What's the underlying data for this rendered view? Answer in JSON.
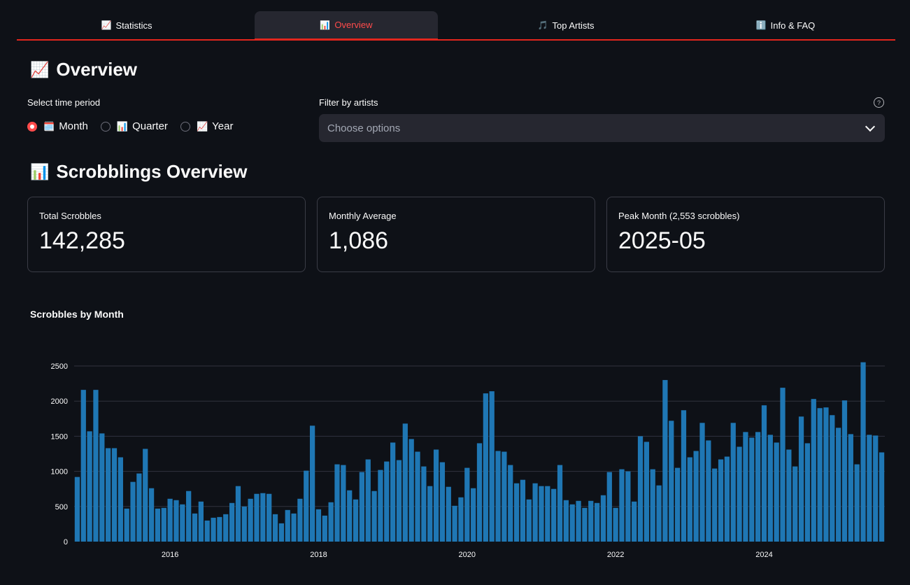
{
  "tabs": [
    {
      "label": "Statistics",
      "icon": "📈"
    },
    {
      "label": "Overview",
      "icon": "📊",
      "active": true
    },
    {
      "label": "Top Artists",
      "icon": "🎵"
    },
    {
      "label": "Info & FAQ",
      "icon": "ℹ️"
    }
  ],
  "overview": {
    "title": "Overview",
    "title_icon": "📈",
    "time_period_label": "Select time period",
    "options": [
      {
        "label": "Month",
        "icon": "🗓️",
        "selected": true
      },
      {
        "label": "Quarter",
        "icon": "📊",
        "selected": false
      },
      {
        "label": "Year",
        "icon": "📈",
        "selected": false
      }
    ],
    "filter_label": "Filter by artists",
    "filter_placeholder": "Choose options",
    "help_glyph": "?"
  },
  "scrobblings": {
    "title": "Scrobblings Overview",
    "title_icon": "📊",
    "metrics": [
      {
        "label": "Total Scrobbles",
        "value": "142,285"
      },
      {
        "label": "Monthly Average",
        "value": "1,086"
      },
      {
        "label": "Peak Month (2,553 scrobbles)",
        "value": "2025-05"
      }
    ]
  },
  "colors": {
    "accent": "#ff4b4b",
    "bar": "#1f77b4",
    "background": "#0e1117"
  },
  "chart_data": {
    "type": "bar",
    "title": "Scrobbles by Month",
    "xlabel": "",
    "ylabel": "",
    "ylim": [
      0,
      2600
    ],
    "yticks": [
      0,
      500,
      1000,
      1500,
      2000,
      2500
    ],
    "xtick_labels": [
      "2016",
      "2018",
      "2020",
      "2022",
      "2024"
    ],
    "start_month": "2014-10",
    "values": [
      920,
      2160,
      1570,
      2160,
      1540,
      1330,
      1330,
      1200,
      470,
      850,
      970,
      1320,
      760,
      470,
      480,
      610,
      590,
      530,
      720,
      400,
      570,
      300,
      340,
      350,
      390,
      550,
      790,
      500,
      610,
      680,
      690,
      680,
      390,
      260,
      450,
      400,
      610,
      1010,
      1650,
      460,
      370,
      560,
      1100,
      1090,
      730,
      600,
      990,
      1170,
      720,
      1020,
      1140,
      1410,
      1160,
      1680,
      1460,
      1280,
      1070,
      790,
      1310,
      1130,
      780,
      510,
      630,
      1050,
      760,
      1400,
      2110,
      2140,
      1290,
      1280,
      1090,
      830,
      880,
      600,
      830,
      790,
      790,
      750,
      1090,
      590,
      530,
      580,
      480,
      580,
      550,
      660,
      990,
      480,
      1030,
      1000,
      570,
      1500,
      1420,
      1030,
      800,
      2300,
      1720,
      1050,
      1870,
      1200,
      1290,
      1690,
      1440,
      1040,
      1170,
      1210,
      1690,
      1350,
      1560,
      1480,
      1560,
      1940,
      1520,
      1410,
      2190,
      1310,
      1070,
      1780,
      1400,
      2030,
      1900,
      1910,
      1800,
      1620,
      2010,
      1530,
      1100,
      2553,
      1520,
      1510,
      1270
    ]
  }
}
